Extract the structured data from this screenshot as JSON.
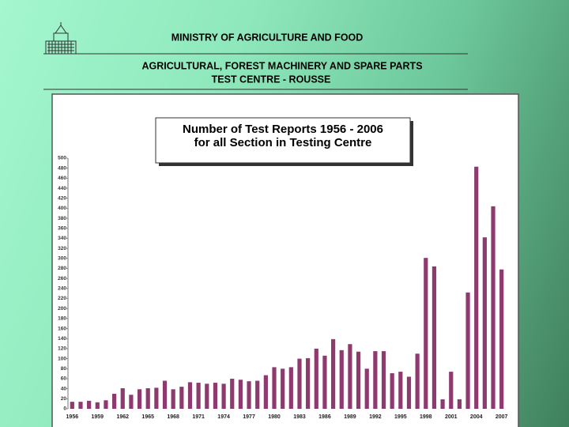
{
  "header": {
    "ministry": "MINISTRY OF AGRICULTURE AND FOOD",
    "centre": [
      "AGRICULTURAL, FOREST MACHINERY AND SPARE PARTS",
      "TEST CENTRE - ROUSSE"
    ]
  },
  "chart_data": {
    "type": "bar",
    "title": [
      "Number of Test Reports 1956 - 2006",
      "for all Section in Testing Centre"
    ],
    "categories": [
      "1956",
      null,
      null,
      "1959",
      null,
      null,
      "1962",
      null,
      null,
      "1965",
      null,
      null,
      "1968",
      null,
      null,
      "1971",
      null,
      null,
      "1974",
      null,
      null,
      "1977",
      null,
      null,
      "1980",
      null,
      null,
      "1983",
      null,
      null,
      "1986",
      null,
      null,
      "1989",
      null,
      null,
      "1992",
      null,
      null,
      "1995",
      null,
      null,
      "1998",
      null,
      null,
      "2001",
      null,
      null,
      "2004",
      null,
      null,
      "2007"
    ],
    "values": [
      14,
      14,
      16,
      13,
      17,
      30,
      41,
      28,
      39,
      41,
      42,
      56,
      39,
      44,
      53,
      52,
      50,
      52,
      50,
      60,
      58,
      55,
      56,
      67,
      83,
      80,
      83,
      100,
      101,
      120,
      106,
      139,
      117,
      129,
      114,
      80,
      115,
      115,
      71,
      74,
      64,
      110,
      301,
      284,
      19,
      74,
      19,
      232,
      483,
      342,
      404,
      278
    ],
    "color": "#8e3a6e",
    "ylim": [
      0,
      500
    ],
    "yticks": [
      0,
      20,
      40,
      60,
      80,
      100,
      120,
      140,
      160,
      180,
      200,
      220,
      240,
      260,
      280,
      300,
      320,
      340,
      360,
      380,
      400,
      420,
      440,
      460,
      480,
      500
    ]
  }
}
